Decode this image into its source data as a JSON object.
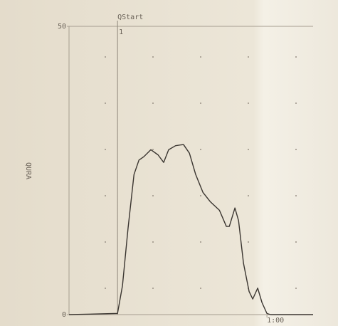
{
  "chart_data": {
    "type": "line",
    "y_label": "QURA",
    "annotations": [
      {
        "text": "QStart",
        "x": 14.7
      },
      {
        "text": "1",
        "x": 14.7
      }
    ],
    "x": [
      0,
      14.7,
      16.2,
      17.9,
      19.7,
      21.2,
      22.7,
      24.8,
      27,
      28.7,
      30.2,
      32.3,
      34.7,
      36.5,
      38.4,
      40.6,
      42.8,
      45.6,
      47.7,
      48.6,
      50.3,
      51.4,
      52.9,
      54.6,
      55.7,
      57.2,
      58.5,
      60,
      61.1,
      74
    ],
    "series": [
      {
        "color": "#3a3530",
        "values": [
          0,
          0.2,
          5,
          15,
          24.3,
          26.8,
          27.4,
          28.6,
          27.7,
          26.4,
          28.6,
          29.3,
          29.5,
          28,
          24.3,
          21.2,
          19.6,
          18.1,
          15.3,
          15.3,
          18.5,
          16.3,
          8.9,
          4,
          2.7,
          4.6,
          2.1,
          0.2,
          0,
          0
        ]
      }
    ],
    "xlim": [
      0,
      74
    ],
    "xticks": [
      {
        "value": 60,
        "label": "1:00"
      }
    ],
    "ylim": [
      0,
      50
    ],
    "yticks": [
      0,
      50
    ]
  }
}
